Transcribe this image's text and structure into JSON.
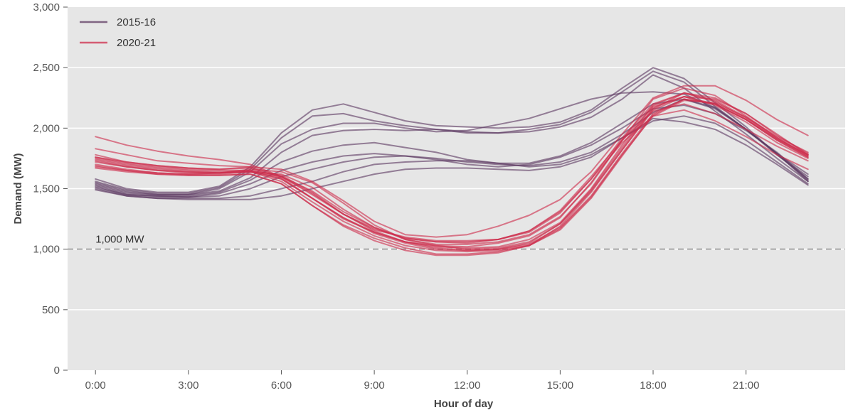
{
  "chart_data": {
    "type": "line",
    "title": "",
    "xlabel": "Hour of day",
    "ylabel": "Demand (MW)",
    "xlim": [
      -0.9,
      24.2
    ],
    "ylim": [
      0,
      3000
    ],
    "grid": true,
    "legend_position": "top-left",
    "x_ticks": [
      0,
      3,
      6,
      9,
      12,
      15,
      18,
      21
    ],
    "x_tick_labels": [
      "0:00",
      "3:00",
      "6:00",
      "9:00",
      "12:00",
      "15:00",
      "18:00",
      "21:00"
    ],
    "y_ticks": [
      0,
      500,
      1000,
      1500,
      2000,
      2500,
      3000
    ],
    "y_tick_labels": [
      "0",
      "500",
      "1,000",
      "1,500",
      "2,000",
      "2,500",
      "3,000"
    ],
    "hours": [
      0,
      1,
      2,
      3,
      4,
      5,
      6,
      7,
      8,
      9,
      10,
      11,
      12,
      13,
      14,
      15,
      16,
      17,
      18,
      19,
      20,
      21,
      22,
      23
    ],
    "reference_line": {
      "value": 1000,
      "label": "1,000 MW",
      "color": "#a9a9a9"
    },
    "series_groups": [
      {
        "name": "2015-16",
        "color": "#5e3a62",
        "lines": [
          [
            1580,
            1500,
            1470,
            1470,
            1520,
            1680,
            1960,
            2150,
            2200,
            2130,
            2060,
            2020,
            2010,
            2000,
            2010,
            2050,
            2150,
            2330,
            2500,
            2410,
            2210,
            2010,
            1780,
            1600
          ],
          [
            1560,
            1490,
            1460,
            1460,
            1510,
            1660,
            1920,
            2100,
            2120,
            2060,
            2020,
            1990,
            1960,
            1960,
            1990,
            2030,
            2130,
            2300,
            2470,
            2380,
            2180,
            1990,
            1790,
            1620
          ],
          [
            1550,
            1480,
            1450,
            1450,
            1500,
            1640,
            1870,
            1990,
            2040,
            2040,
            2000,
            1970,
            1980,
            2030,
            2080,
            2160,
            2240,
            2290,
            2300,
            2280,
            2170,
            1990,
            1780,
            1580
          ],
          [
            1540,
            1470,
            1450,
            1450,
            1480,
            1590,
            1800,
            1940,
            1980,
            1990,
            1980,
            1990,
            1970,
            1960,
            1970,
            2010,
            2090,
            2240,
            2440,
            2330,
            2140,
            1950,
            1750,
            1560
          ],
          [
            1530,
            1460,
            1440,
            1440,
            1470,
            1570,
            1720,
            1810,
            1860,
            1880,
            1840,
            1800,
            1740,
            1710,
            1710,
            1770,
            1880,
            2040,
            2200,
            2240,
            2160,
            1990,
            1790,
            1560
          ],
          [
            1520,
            1450,
            1440,
            1430,
            1460,
            1540,
            1650,
            1720,
            1770,
            1790,
            1770,
            1740,
            1700,
            1680,
            1700,
            1760,
            1860,
            2000,
            2160,
            2190,
            2120,
            1980,
            1800,
            1580
          ],
          [
            1510,
            1450,
            1430,
            1430,
            1440,
            1500,
            1600,
            1660,
            1720,
            1760,
            1770,
            1750,
            1720,
            1700,
            1690,
            1720,
            1800,
            1950,
            2130,
            2240,
            2170,
            1990,
            1790,
            1570
          ],
          [
            1500,
            1440,
            1420,
            1420,
            1420,
            1440,
            1500,
            1560,
            1640,
            1700,
            1720,
            1730,
            1730,
            1710,
            1680,
            1700,
            1780,
            1920,
            2060,
            2100,
            2040,
            1900,
            1720,
            1540
          ],
          [
            1490,
            1440,
            1420,
            1410,
            1410,
            1410,
            1440,
            1500,
            1560,
            1620,
            1660,
            1670,
            1670,
            1660,
            1650,
            1680,
            1760,
            1920,
            2080,
            2050,
            1990,
            1860,
            1700,
            1530
          ]
        ]
      },
      {
        "name": "2020-21",
        "color": "#cd2d4c",
        "lines": [
          [
            1930,
            1860,
            1810,
            1770,
            1740,
            1700,
            1600,
            1460,
            1290,
            1170,
            1090,
            1060,
            1060,
            1080,
            1140,
            1300,
            1580,
            1880,
            2100,
            2150,
            2060,
            1930,
            1780,
            1660
          ],
          [
            1830,
            1780,
            1730,
            1710,
            1690,
            1680,
            1600,
            1450,
            1290,
            1160,
            1100,
            1070,
            1070,
            1080,
            1150,
            1320,
            1600,
            1900,
            2140,
            2200,
            2120,
            1990,
            1850,
            1730
          ],
          [
            1780,
            1720,
            1690,
            1670,
            1660,
            1670,
            1590,
            1420,
            1260,
            1140,
            1060,
            1030,
            1020,
            1050,
            1110,
            1260,
            1550,
            1900,
            2180,
            2260,
            2200,
            2070,
            1910,
            1780
          ],
          [
            1760,
            1710,
            1680,
            1660,
            1650,
            1650,
            1580,
            1420,
            1250,
            1140,
            1060,
            1020,
            1010,
            1020,
            1080,
            1220,
            1500,
            1860,
            2190,
            2290,
            2230,
            2090,
            1930,
            1800
          ],
          [
            1750,
            1700,
            1670,
            1650,
            1640,
            1640,
            1600,
            1480,
            1310,
            1180,
            1090,
            1060,
            1050,
            1080,
            1150,
            1310,
            1580,
            1920,
            2200,
            2290,
            2220,
            2080,
            1910,
            1770
          ],
          [
            1740,
            1690,
            1660,
            1640,
            1630,
            1640,
            1620,
            1510,
            1330,
            1180,
            1080,
            1040,
            1040,
            1060,
            1120,
            1270,
            1540,
            1900,
            2240,
            2330,
            2270,
            2100,
            1920,
            1780
          ],
          [
            1730,
            1680,
            1650,
            1640,
            1630,
            1660,
            1640,
            1550,
            1380,
            1200,
            1080,
            1030,
            1000,
            1010,
            1060,
            1210,
            1480,
            1820,
            2150,
            2260,
            2240,
            2120,
            1940,
            1790
          ],
          [
            1720,
            1680,
            1650,
            1630,
            1630,
            1650,
            1610,
            1470,
            1290,
            1150,
            1060,
            1010,
            990,
            1000,
            1040,
            1180,
            1440,
            1790,
            2120,
            2240,
            2200,
            2070,
            1900,
            1760
          ],
          [
            1700,
            1660,
            1630,
            1620,
            1630,
            1640,
            1580,
            1420,
            1260,
            1130,
            1050,
            1000,
            990,
            1000,
            1050,
            1210,
            1490,
            1840,
            2170,
            2260,
            2190,
            2050,
            1880,
            1750
          ],
          [
            1690,
            1650,
            1630,
            1620,
            1620,
            1640,
            1560,
            1390,
            1230,
            1110,
            1030,
            990,
            980,
            990,
            1030,
            1160,
            1420,
            1770,
            2110,
            2240,
            2200,
            2070,
            1900,
            1760
          ],
          [
            1680,
            1650,
            1620,
            1610,
            1610,
            1620,
            1540,
            1360,
            1200,
            1090,
            1010,
            960,
            960,
            980,
            1030,
            1170,
            1430,
            1780,
            2100,
            2230,
            2210,
            2090,
            1920,
            1770
          ],
          [
            1670,
            1640,
            1620,
            1610,
            1610,
            1620,
            1540,
            1360,
            1190,
            1070,
            990,
            950,
            950,
            970,
            1030,
            1190,
            1470,
            1820,
            2160,
            2290,
            2250,
            2120,
            1950,
            1780
          ],
          [
            1760,
            1720,
            1690,
            1670,
            1660,
            1680,
            1660,
            1560,
            1400,
            1230,
            1120,
            1100,
            1120,
            1190,
            1280,
            1410,
            1640,
            1950,
            2250,
            2350,
            2350,
            2230,
            2070,
            1940
          ]
        ]
      }
    ]
  }
}
